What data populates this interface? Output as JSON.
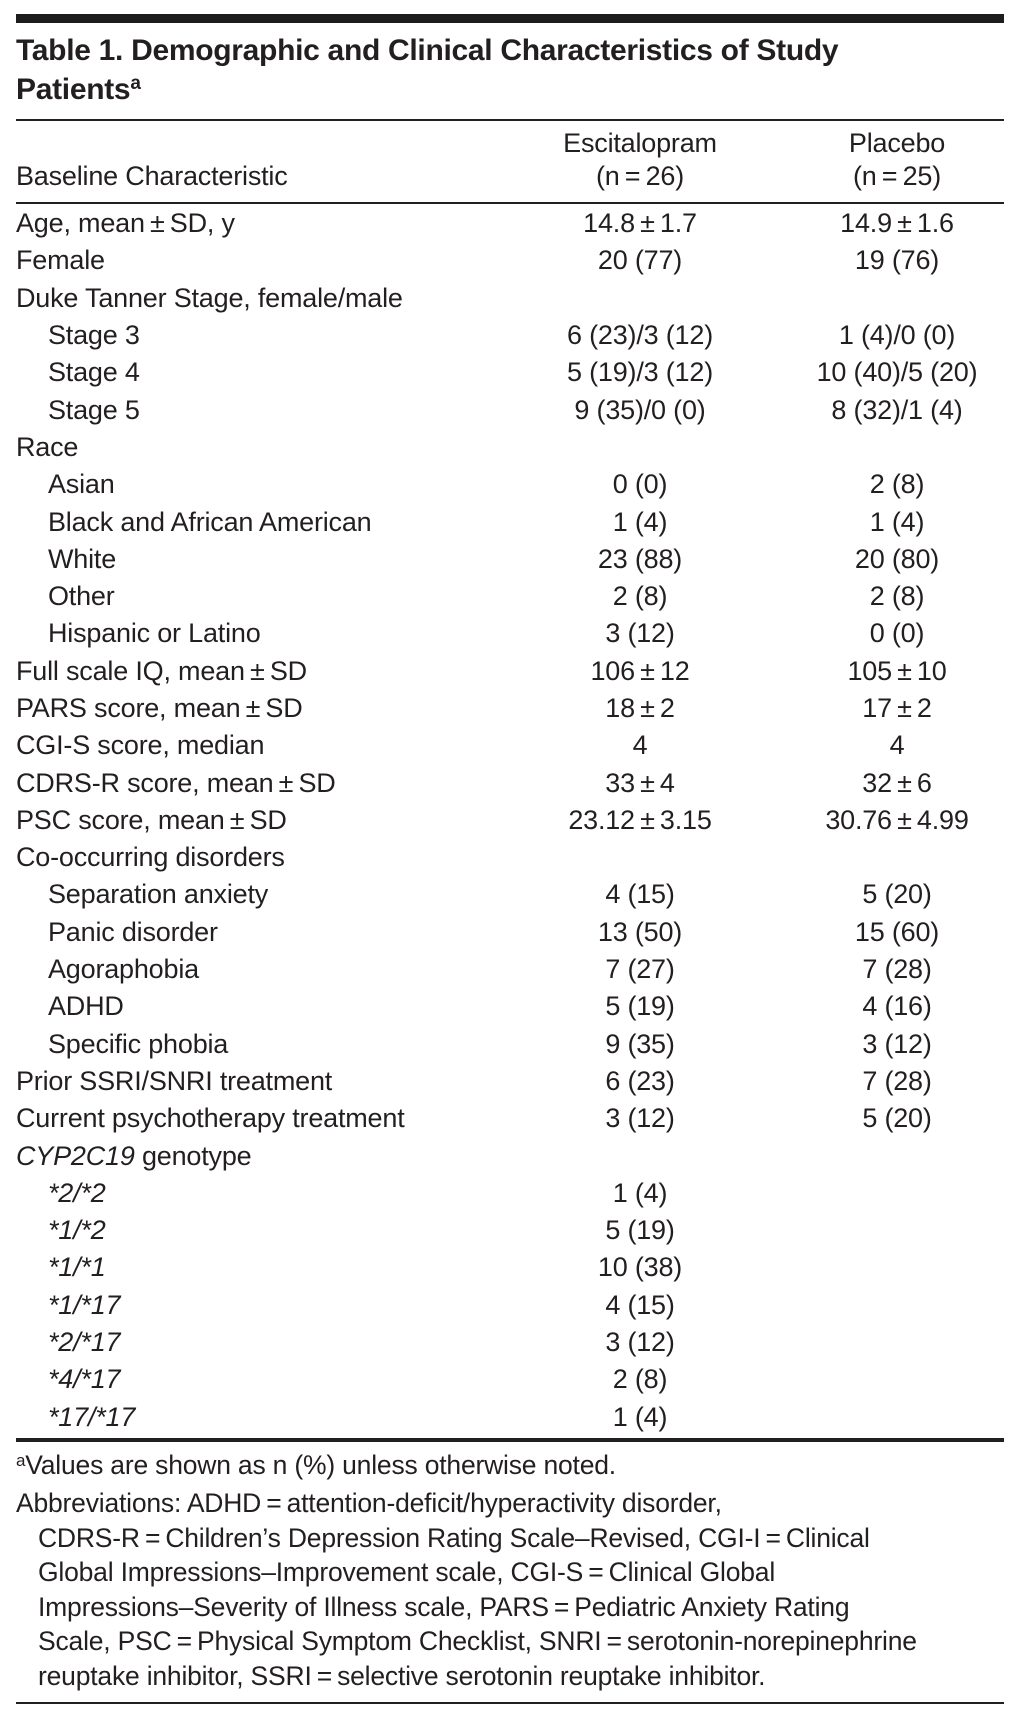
{
  "title": {
    "line1": "Table 1. Demographic and Clinical Characteristics of Study",
    "line2": "Patients",
    "footnote_marker": "a"
  },
  "header": {
    "col1": "Baseline Characteristic",
    "col2": [
      "Escitalopram",
      "(n = 26)"
    ],
    "col3": [
      "Placebo",
      "(n = 25)"
    ]
  },
  "table": {
    "rows": [
      {
        "label": "Age, mean ± SD, y",
        "indent": false,
        "italic": false,
        "italic_prefix": "",
        "esc": "14.8 ± 1.7",
        "pla": "14.9 ± 1.6"
      },
      {
        "label": "Female",
        "indent": false,
        "italic": false,
        "italic_prefix": "",
        "esc": "20 (77)",
        "pla": "19 (76)"
      },
      {
        "label": "Duke Tanner Stage, female/male",
        "indent": false,
        "italic": false,
        "italic_prefix": "",
        "esc": "",
        "pla": ""
      },
      {
        "label": "Stage 3",
        "indent": true,
        "italic": false,
        "italic_prefix": "",
        "esc": "6 (23)/3 (12)",
        "pla": "1 (4)/0 (0)"
      },
      {
        "label": "Stage 4",
        "indent": true,
        "italic": false,
        "italic_prefix": "",
        "esc": "5 (19)/3 (12)",
        "pla": "10 (40)/5 (20)"
      },
      {
        "label": "Stage 5",
        "indent": true,
        "italic": false,
        "italic_prefix": "",
        "esc": "9 (35)/0 (0)",
        "pla": "8 (32)/1 (4)"
      },
      {
        "label": "Race",
        "indent": false,
        "italic": false,
        "italic_prefix": "",
        "esc": "",
        "pla": ""
      },
      {
        "label": "Asian",
        "indent": true,
        "italic": false,
        "italic_prefix": "",
        "esc": "0 (0)",
        "pla": "2 (8)"
      },
      {
        "label": "Black and African American",
        "indent": true,
        "italic": false,
        "italic_prefix": "",
        "esc": "1 (4)",
        "pla": "1 (4)"
      },
      {
        "label": "White",
        "indent": true,
        "italic": false,
        "italic_prefix": "",
        "esc": "23 (88)",
        "pla": "20 (80)"
      },
      {
        "label": "Other",
        "indent": true,
        "italic": false,
        "italic_prefix": "",
        "esc": "2 (8)",
        "pla": "2 (8)"
      },
      {
        "label": "Hispanic or Latino",
        "indent": true,
        "italic": false,
        "italic_prefix": "",
        "esc": "3 (12)",
        "pla": "0 (0)"
      },
      {
        "label": "Full scale IQ, mean ± SD",
        "indent": false,
        "italic": false,
        "italic_prefix": "",
        "esc": "106 ± 12",
        "pla": "105 ± 10"
      },
      {
        "label": "PARS score, mean ± SD",
        "indent": false,
        "italic": false,
        "italic_prefix": "",
        "esc": "18 ± 2",
        "pla": "17 ± 2"
      },
      {
        "label": "CGI-S score, median",
        "indent": false,
        "italic": false,
        "italic_prefix": "",
        "esc": "4",
        "pla": "4"
      },
      {
        "label": "CDRS-R score, mean ± SD",
        "indent": false,
        "italic": false,
        "italic_prefix": "",
        "esc": "33 ± 4",
        "pla": "32 ± 6"
      },
      {
        "label": "PSC score, mean ± SD",
        "indent": false,
        "italic": false,
        "italic_prefix": "",
        "esc": "23.12 ± 3.15",
        "pla": "30.76 ± 4.99"
      },
      {
        "label": "Co-occurring disorders",
        "indent": false,
        "italic": false,
        "italic_prefix": "",
        "esc": "",
        "pla": ""
      },
      {
        "label": "Separation anxiety",
        "indent": true,
        "italic": false,
        "italic_prefix": "",
        "esc": "4 (15)",
        "pla": "5 (20)"
      },
      {
        "label": "Panic disorder",
        "indent": true,
        "italic": false,
        "italic_prefix": "",
        "esc": "13 (50)",
        "pla": "15 (60)"
      },
      {
        "label": "Agoraphobia",
        "indent": true,
        "italic": false,
        "italic_prefix": "",
        "esc": "7 (27)",
        "pla": "7 (28)"
      },
      {
        "label": "ADHD",
        "indent": true,
        "italic": false,
        "italic_prefix": "",
        "esc": "5 (19)",
        "pla": "4 (16)"
      },
      {
        "label": "Specific phobia",
        "indent": true,
        "italic": false,
        "italic_prefix": "",
        "esc": "9 (35)",
        "pla": "3 (12)"
      },
      {
        "label": "Prior SSRI/SNRI treatment",
        "indent": false,
        "italic": false,
        "italic_prefix": "",
        "esc": "6 (23)",
        "pla": "7 (28)"
      },
      {
        "label": "Current psychotherapy treatment",
        "indent": false,
        "italic": false,
        "italic_prefix": "",
        "esc": "3 (12)",
        "pla": "5 (20)"
      },
      {
        "label": " genotype",
        "indent": false,
        "italic": false,
        "italic_prefix": "CYP2C19",
        "esc": "",
        "pla": ""
      },
      {
        "label": "*2/*2",
        "indent": true,
        "italic": true,
        "italic_prefix": "",
        "esc": "1 (4)",
        "pla": ""
      },
      {
        "label": "*1/*2",
        "indent": true,
        "italic": true,
        "italic_prefix": "",
        "esc": "5 (19)",
        "pla": ""
      },
      {
        "label": "*1/*1",
        "indent": true,
        "italic": true,
        "italic_prefix": "",
        "esc": "10 (38)",
        "pla": ""
      },
      {
        "label": "*1/*17",
        "indent": true,
        "italic": true,
        "italic_prefix": "",
        "esc": "4 (15)",
        "pla": ""
      },
      {
        "label": "*2/*17",
        "indent": true,
        "italic": true,
        "italic_prefix": "",
        "esc": "3 (12)",
        "pla": ""
      },
      {
        "label": "*4/*17",
        "indent": true,
        "italic": true,
        "italic_prefix": "",
        "esc": "2 (8)",
        "pla": ""
      },
      {
        "label": "*17/*17",
        "indent": true,
        "italic": true,
        "italic_prefix": "",
        "esc": "1 (4)",
        "pla": ""
      }
    ]
  },
  "footnotes": {
    "note_marker": "a",
    "note_text": "Values are shown as n (%) unless otherwise noted.",
    "abbreviation_lines": [
      "Abbreviations: ADHD = attention-deficit/hyperactivity disorder,",
      "CDRS-R = Children’s Depression Rating Scale–Revised, CGI-I = Clinical",
      "Global Impressions–Improvement scale, CGI-S = Clinical Global",
      "Impressions–Severity of Illness scale, PARS = Pediatric Anxiety Rating",
      "Scale, PSC = Physical Symptom Checklist, SNRI = serotonin-norepinephrine",
      "reuptake inhibitor, SSRI = selective serotonin reuptake inhibitor."
    ]
  },
  "colors": {
    "text": "#231f20",
    "rule": "#231f20",
    "background": "#ffffff"
  }
}
